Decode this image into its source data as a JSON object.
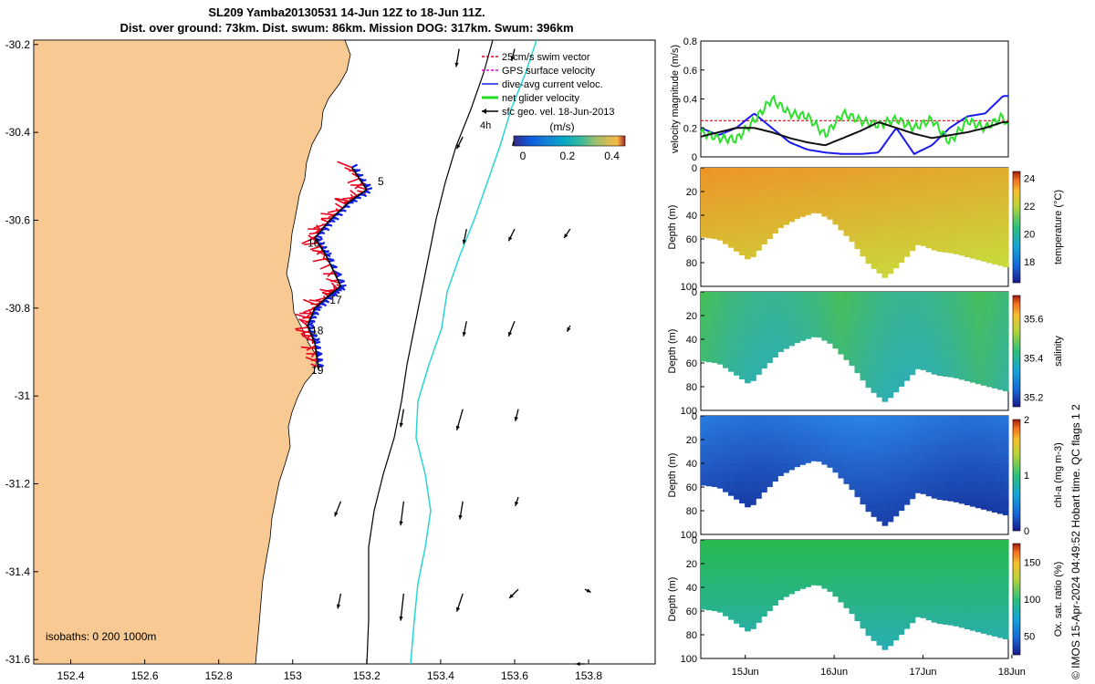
{
  "chart_data": {
    "type": "multi-panel",
    "title_line1": "SL209 Yamba20130531 14-Jun 12Z to 18-Jun 11Z.",
    "title_line2": "Dist. over ground: 73km. Dist. swum: 86km. Mission DOG: 317km. Swum: 396km",
    "map": {
      "x_ticks": [
        "152.4",
        "152.6",
        "152.8",
        "153",
        "153.2",
        "153.4",
        "153.6",
        "153.8"
      ],
      "x_values": [
        152.4,
        152.6,
        152.8,
        153.0,
        153.2,
        153.4,
        153.6,
        153.8
      ],
      "y_ticks": [
        "-30.2",
        "-30.4",
        "-30.6",
        "-30.8",
        "-31",
        "-31.2",
        "-31.4",
        "-31.6"
      ],
      "y_values": [
        -30.2,
        -30.4,
        -30.6,
        -30.8,
        -31.0,
        -31.2,
        -31.4,
        -31.6
      ],
      "xlim": [
        152.3,
        153.98
      ],
      "ylim": [
        -31.61,
        -30.19
      ],
      "legend": [
        {
          "label": "25cm/s swim vector",
          "color": "#e8001c"
        },
        {
          "label": "GPS surface velocity",
          "color": "#e000e0"
        },
        {
          "label": "dive-avg current veloc.",
          "color": "#1020e0"
        },
        {
          "label": "net glider velocity",
          "color": "#22dd22"
        },
        {
          "label": "sfc geo. vel. 18-Jun-2013",
          "color": "#000000"
        }
      ],
      "legend_extra": "4h",
      "colorbar_title": "(m/s)",
      "colorbar_ticks": [
        "0",
        "0.2",
        "0.4"
      ],
      "colorbar_range": [
        0,
        0.5
      ],
      "isobath_label": "isobaths: 0   200  1000m",
      "track_labels": [
        {
          "text": "5",
          "lon": 153.23,
          "lat": -30.52
        },
        {
          "text": "16",
          "lon": 153.04,
          "lat": -30.66
        },
        {
          "text": "17",
          "lon": 153.1,
          "lat": -30.79
        },
        {
          "text": "18",
          "lon": 153.05,
          "lat": -30.86
        },
        {
          "text": "19",
          "lon": 153.05,
          "lat": -30.95
        }
      ],
      "track": [
        {
          "lon": 153.16,
          "lat": -30.48
        },
        {
          "lon": 153.2,
          "lat": -30.53
        },
        {
          "lon": 153.15,
          "lat": -30.56
        },
        {
          "lon": 153.1,
          "lat": -30.6
        },
        {
          "lon": 153.06,
          "lat": -30.64
        },
        {
          "lon": 153.09,
          "lat": -30.68
        },
        {
          "lon": 153.13,
          "lat": -30.75
        },
        {
          "lon": 153.1,
          "lat": -30.77
        },
        {
          "lon": 153.06,
          "lat": -30.8
        },
        {
          "lon": 153.04,
          "lat": -30.84
        },
        {
          "lon": 153.06,
          "lat": -30.88
        },
        {
          "lon": 153.07,
          "lat": -30.94
        }
      ],
      "arrows": [
        {
          "lon": 153.45,
          "lat": -30.21,
          "u": -0.01,
          "v": -0.06
        },
        {
          "lon": 153.6,
          "lat": -30.21,
          "u": -0.01,
          "v": -0.04
        },
        {
          "lon": 153.46,
          "lat": -30.41,
          "u": -0.02,
          "v": -0.04
        },
        {
          "lon": 153.61,
          "lat": -30.41,
          "u": -0.02,
          "v": -0.03
        },
        {
          "lon": 153.47,
          "lat": -30.62,
          "u": -0.01,
          "v": -0.05
        },
        {
          "lon": 153.6,
          "lat": -30.62,
          "u": -0.02,
          "v": -0.04
        },
        {
          "lon": 153.75,
          "lat": -30.62,
          "u": -0.02,
          "v": -0.03
        },
        {
          "lon": 153.47,
          "lat": -30.83,
          "u": -0.01,
          "v": -0.05
        },
        {
          "lon": 153.6,
          "lat": -30.83,
          "u": -0.02,
          "v": -0.05
        },
        {
          "lon": 153.75,
          "lat": -30.84,
          "u": -0.01,
          "v": -0.02
        },
        {
          "lon": 153.3,
          "lat": -31.03,
          "u": -0.01,
          "v": -0.06
        },
        {
          "lon": 153.46,
          "lat": -31.03,
          "u": -0.02,
          "v": -0.07
        },
        {
          "lon": 153.61,
          "lat": -31.03,
          "u": -0.01,
          "v": -0.04
        },
        {
          "lon": 153.13,
          "lat": -31.24,
          "u": -0.02,
          "v": -0.05
        },
        {
          "lon": 153.3,
          "lat": -31.24,
          "u": -0.01,
          "v": -0.08
        },
        {
          "lon": 153.46,
          "lat": -31.24,
          "u": -0.01,
          "v": -0.06
        },
        {
          "lon": 153.61,
          "lat": -31.23,
          "u": -0.01,
          "v": -0.03
        },
        {
          "lon": 153.13,
          "lat": -31.45,
          "u": -0.01,
          "v": -0.05
        },
        {
          "lon": 153.3,
          "lat": -31.45,
          "u": -0.01,
          "v": -0.09
        },
        {
          "lon": 153.46,
          "lat": -31.45,
          "u": -0.02,
          "v": -0.06
        },
        {
          "lon": 153.61,
          "lat": -31.44,
          "u": -0.03,
          "v": -0.03
        },
        {
          "lon": 153.79,
          "lat": -31.44,
          "u": 0.02,
          "v": -0.01
        },
        {
          "lon": 153.79,
          "lat": -31.61,
          "u": -0.03,
          "v": 0.0
        }
      ]
    },
    "time_panels": {
      "x_ticks": [
        "15Jun",
        "16Jun",
        "17Jun",
        "18Jun"
      ],
      "x_values": [
        15.0,
        16.0,
        17.0,
        18.0
      ],
      "xlim": [
        14.5,
        17.96
      ],
      "velocity": {
        "ylabel": "velocity magnitude (m/s)",
        "y_ticks": [
          "0",
          "0.2",
          "0.4",
          "0.6",
          "0.8"
        ],
        "ylim": [
          0,
          0.8
        ],
        "reference_level": 0.25,
        "series": [
          {
            "name": "dive-avg current veloc.",
            "color": "#1a1aee",
            "t": [
              14.5,
              14.7,
              14.9,
              15.1,
              15.3,
              15.5,
              15.7,
              15.9,
              16.1,
              16.3,
              16.5,
              16.7,
              16.9,
              17.1,
              17.3,
              17.5,
              17.7,
              17.9,
              17.96
            ],
            "v": [
              0.2,
              0.15,
              0.2,
              0.3,
              0.2,
              0.1,
              0.05,
              0.03,
              0.02,
              0.02,
              0.03,
              0.2,
              0.02,
              0.08,
              0.2,
              0.28,
              0.3,
              0.42,
              0.42
            ]
          },
          {
            "name": "net glider velocity",
            "color": "#2ee02e",
            "t": [
              14.5,
              14.7,
              14.9,
              15.1,
              15.3,
              15.5,
              15.7,
              15.9,
              16.1,
              16.3,
              16.5,
              16.7,
              16.9,
              17.1,
              17.3,
              17.5,
              17.7,
              17.9,
              17.96
            ],
            "v": [
              0.17,
              0.13,
              0.12,
              0.25,
              0.4,
              0.3,
              0.28,
              0.15,
              0.3,
              0.25,
              0.22,
              0.26,
              0.2,
              0.26,
              0.1,
              0.25,
              0.2,
              0.28,
              0.2
            ]
          },
          {
            "name": "sfc geo. vel.",
            "color": "#111111",
            "t": [
              14.5,
              14.7,
              14.9,
              15.1,
              15.3,
              15.5,
              15.7,
              15.9,
              16.1,
              16.3,
              16.5,
              16.7,
              16.9,
              17.1,
              17.3,
              17.5,
              17.7,
              17.9,
              17.96
            ],
            "v": [
              0.14,
              0.17,
              0.2,
              0.2,
              0.17,
              0.13,
              0.1,
              0.08,
              0.13,
              0.18,
              0.24,
              0.2,
              0.16,
              0.13,
              0.15,
              0.17,
              0.2,
              0.24,
              0.24
            ]
          }
        ]
      },
      "section_surface": {
        "t": [
          14.5,
          14.7,
          14.9,
          15.05,
          15.2,
          15.4,
          15.6,
          15.8,
          15.97,
          16.2,
          16.4,
          16.58,
          16.75,
          16.95,
          17.15,
          17.35,
          17.55,
          17.75,
          17.96
        ],
        "depth": [
          58,
          60,
          70,
          78,
          65,
          50,
          42,
          37,
          44,
          62,
          82,
          93,
          80,
          64,
          70,
          72,
          76,
          80,
          84
        ]
      },
      "sections": [
        {
          "ylabel": "Depth (m)",
          "cblabel": "temperature (°C)",
          "cb_ticks": [
            "18",
            "20",
            "22",
            "24"
          ],
          "cb_values": [
            18,
            20,
            22,
            24
          ],
          "cb_range": [
            16.5,
            24.5
          ],
          "y_ticks": [
            "0",
            "20",
            "40",
            "60",
            "80",
            "100"
          ],
          "ylim": [
            0,
            100
          ],
          "scheme": "parula-warm"
        },
        {
          "ylabel": "Depth (m)",
          "cblabel": "salinity",
          "cb_ticks": [
            "35.2",
            "35.4",
            "35.6"
          ],
          "cb_values": [
            35.2,
            35.4,
            35.6
          ],
          "cb_range": [
            35.15,
            35.72
          ],
          "y_ticks": [
            "0",
            "20",
            "40",
            "60",
            "80",
            "100"
          ],
          "ylim": [
            0,
            100
          ],
          "scheme": "parula-mid"
        },
        {
          "ylabel": "Depth (m)",
          "cblabel": "chl-a (mg m-3)",
          "cb_ticks": [
            "0",
            "1",
            "2"
          ],
          "cb_values": [
            0,
            1,
            2
          ],
          "cb_range": [
            0,
            2
          ],
          "y_ticks": [
            "0",
            "20",
            "40",
            "60",
            "80",
            "100"
          ],
          "ylim": [
            0,
            100
          ],
          "scheme": "parula-cool"
        },
        {
          "ylabel": "Depth (m)",
          "cblabel": "Ox. sat. ratio (%)",
          "cb_ticks": [
            "50",
            "100",
            "150"
          ],
          "cb_values": [
            50,
            100,
            150
          ],
          "cb_range": [
            25,
            175
          ],
          "y_ticks": [
            "0",
            "20",
            "40",
            "60",
            "80",
            "100"
          ],
          "ylim": [
            0,
            100
          ],
          "scheme": "parula-green"
        }
      ]
    },
    "side_note": "© IMOS 15-Apr-2024 04:49:52 Hobart time. QC flags 1  2",
    "colors": {
      "land": "#f9c993",
      "isobath_200": "#000000",
      "isobath_1000": "#2ad4d4"
    }
  }
}
